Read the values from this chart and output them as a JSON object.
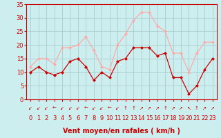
{
  "x": [
    0,
    1,
    2,
    3,
    4,
    5,
    6,
    7,
    8,
    9,
    10,
    11,
    12,
    13,
    14,
    15,
    16,
    17,
    18,
    19,
    20,
    21,
    22,
    23
  ],
  "vent_moyen": [
    10,
    12,
    10,
    9,
    10,
    14,
    15,
    12,
    7,
    10,
    8,
    14,
    15,
    19,
    19,
    19,
    16,
    17,
    8,
    8,
    2,
    5,
    11,
    15
  ],
  "rafales": [
    12,
    15,
    15,
    13,
    19,
    19,
    20,
    23,
    18,
    12,
    11,
    20,
    24,
    29,
    32,
    32,
    27,
    25,
    17,
    17,
    10,
    17,
    21,
    21
  ],
  "color_moyen": "#cc0000",
  "color_rafales": "#ffaaaa",
  "bg_color": "#cceeee",
  "grid_color": "#aacccc",
  "ylim": [
    0,
    35
  ],
  "yticks": [
    0,
    5,
    10,
    15,
    20,
    25,
    30,
    35
  ],
  "xlabel": "Vent moyen/en rafales ( km/h )",
  "tick_fontsize": 6,
  "arrow_chars": [
    "↙",
    "↙",
    "↙",
    "←",
    "↙",
    "↙",
    "↙",
    "←",
    "↙",
    "↙",
    "←",
    "↙",
    "↑",
    "↑",
    "↗",
    "↗",
    "↗",
    "↑",
    "↗",
    "↗",
    "↖",
    "↑",
    "↗",
    "↗"
  ]
}
